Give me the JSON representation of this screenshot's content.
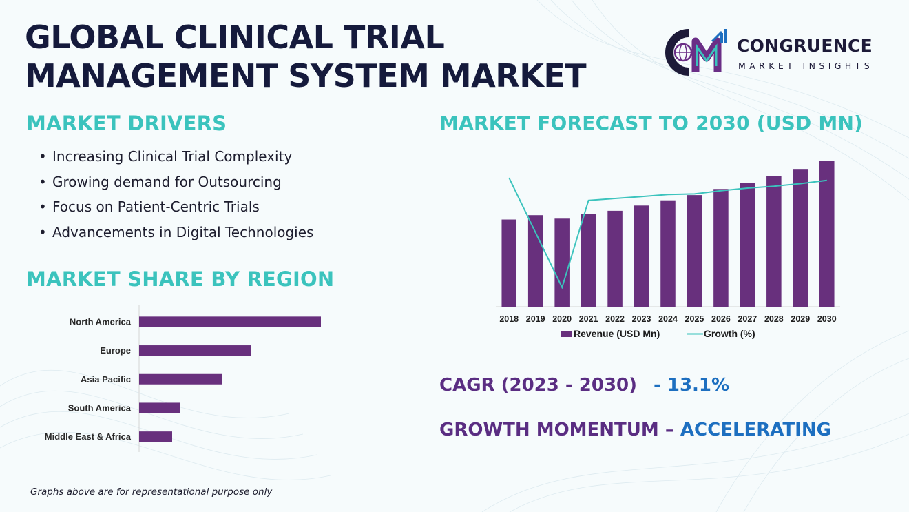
{
  "title": {
    "line1": "GLOBAL CLINICAL TRIAL",
    "line2": "MANAGEMENT SYSTEM MARKET"
  },
  "logo": {
    "name": "CONGRUENCE",
    "sub": "MARKET INSIGHTS"
  },
  "drivers": {
    "heading": "MARKET DRIVERS",
    "items": [
      "Increasing Clinical Trial Complexity",
      "Growing demand for Outsourcing",
      "Focus on Patient-Centric Trials",
      "Advancements in Digital Technologies"
    ]
  },
  "forecast": {
    "heading": "MARKET FORECAST TO 2030 (USD MN)"
  },
  "region": {
    "heading": "MARKET SHARE BY REGION"
  },
  "stats": {
    "cagr_label": "CAGR (2023 - 2030)",
    "cagr_value": "- 13.1%",
    "momentum_label": "GROWTH MOMENTUM –",
    "momentum_value": "ACCELERATING"
  },
  "footnote": "Graphs above are for representational  purpose only",
  "colors": {
    "bar": "#68307d",
    "line": "#3bc3bd",
    "heading": "#3bc3bd",
    "title": "#151a3c",
    "accent_purple": "#5a2d82",
    "accent_blue": "#1d6fc0"
  },
  "chart_data": [
    {
      "type": "bar",
      "orientation": "horizontal",
      "title": "",
      "categories": [
        "North America",
        "Europe",
        "Asia Pacific",
        "South America",
        "Middle East & Africa"
      ],
      "values": [
        44,
        27,
        20,
        10,
        8
      ],
      "xlim": [
        0,
        50
      ],
      "grid": false,
      "legend": "none"
    },
    {
      "type": "bar",
      "title": "",
      "categories": [
        "2018",
        "2019",
        "2020",
        "2021",
        "2022",
        "2023",
        "2024",
        "2025",
        "2026",
        "2027",
        "2028",
        "2029",
        "2030"
      ],
      "series": [
        {
          "name": "Revenue (USD Mn)",
          "type": "bar",
          "values": [
            100,
            105,
            101,
            106,
            110,
            116,
            122,
            128,
            135,
            142,
            150,
            158,
            167
          ]
        },
        {
          "name": "Growth (%)",
          "type": "line",
          "values": [
            15,
            null,
            -2,
            11.5,
            11.8,
            12.1,
            12.4,
            12.5,
            13,
            13.4,
            13.7,
            14.1,
            14.6
          ]
        }
      ],
      "ylim": [
        0,
        170
      ],
      "y2lim": [
        -5,
        18
      ],
      "grid": false,
      "legend": "bottom-center"
    }
  ]
}
